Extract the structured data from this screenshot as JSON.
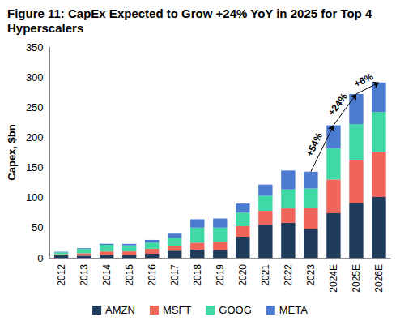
{
  "chart_data": {
    "type": "bar",
    "title": "Figure 11: CapEx Expected to Grow +24% YoY in 2025 for Top 4 Hyperscalers",
    "y_label": "Capex, $bn",
    "categories": [
      "2012",
      "2013",
      "2014",
      "2015",
      "2016",
      "2017",
      "2018",
      "2019",
      "2020",
      "2021",
      "2022",
      "2023",
      "2024E",
      "2025E",
      "2026E"
    ],
    "series": [
      {
        "name": "AMZN",
        "color": "#1f3b5c",
        "values": [
          4,
          3.5,
          4.9,
          4.6,
          6.7,
          11.9,
          13.4,
          12.7,
          35,
          55,
          58,
          48,
          74,
          91,
          101
        ]
      },
      {
        "name": "MSFT",
        "color": "#f0645a",
        "values": [
          2,
          4,
          5.5,
          6,
          8.3,
          8.1,
          11.6,
          13.9,
          17.6,
          23,
          24,
          35,
          56,
          71,
          74
        ]
      },
      {
        "name": "GOOG",
        "color": "#3fd9a6",
        "values": [
          3,
          7,
          11,
          10,
          10.2,
          13.2,
          25.1,
          23.5,
          22.3,
          25,
          31.5,
          32,
          52,
          60,
          67
        ]
      },
      {
        "name": "META",
        "color": "#4a7bd0",
        "values": [
          1,
          1.4,
          1.8,
          2.5,
          4.5,
          6.7,
          13.9,
          15.1,
          15.1,
          18.6,
          31.4,
          28,
          38,
          50,
          49
        ]
      }
    ],
    "stacked": true,
    "ylim": [
      0,
      350
    ],
    "yticks": [
      0,
      50,
      100,
      150,
      200,
      250,
      300,
      350
    ],
    "grid": false,
    "legend": "bottom",
    "annotations": [
      {
        "text": "+54%",
        "from": "2023",
        "to": "2024E"
      },
      {
        "text": "+24%",
        "from": "2024E",
        "to": "2025E"
      },
      {
        "text": "+6%",
        "from": "2025E",
        "to": "2026E"
      }
    ]
  }
}
